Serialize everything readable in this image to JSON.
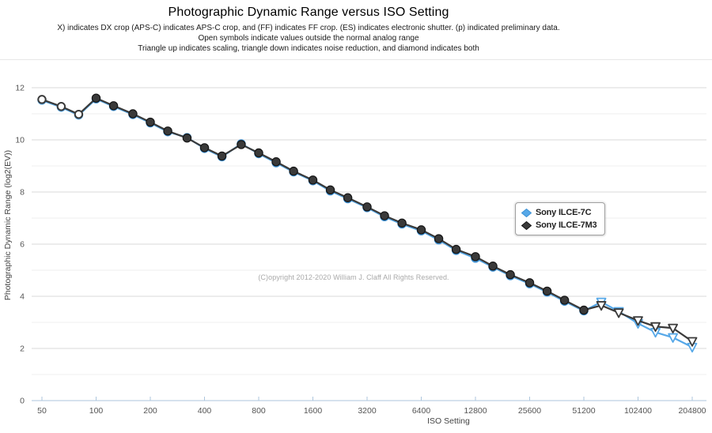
{
  "header": {
    "title": "Photographic Dynamic Range versus ISO Setting",
    "subtitle_lines": [
      "X) indicates DX crop (APS-C) indicates APS-C crop, and (FF) indicates FF crop. (ES) indicates electronic shutter. (p) indicated preliminary data.",
      "Open symbols indicate values outside the normal analog range",
      "Triangle up indicates scaling, triangle down indicates noise reduction, and diamond indicates both"
    ]
  },
  "copyright": "(C)opyright 2012-2020 William J. Claff All Rights Reserved.",
  "legend": {
    "items": [
      {
        "label": "Sony ILCE-7C",
        "color": "#56a8e8",
        "edge": "#3e92d6"
      },
      {
        "label": "Sony ILCE-7M3",
        "color": "#3a3a3a",
        "edge": "#161616"
      }
    ]
  },
  "chart_data": {
    "type": "line",
    "title": "Photographic Dynamic Range versus ISO Setting",
    "xlabel": "ISO Setting",
    "ylabel": "Photographic Dynamic Range (log2(EV))",
    "x_scale": "log2",
    "grid": true,
    "legend_position": "right-middle",
    "x_ticks": [
      50,
      100,
      200,
      400,
      800,
      1600,
      3200,
      6400,
      12800,
      25600,
      51200,
      102400,
      204800
    ],
    "y_ticks": [
      0,
      2,
      4,
      6,
      8,
      10,
      12
    ],
    "ylim": [
      0,
      12
    ],
    "xlim": [
      50,
      204800
    ],
    "iso": [
      50,
      64,
      80,
      100,
      125,
      160,
      200,
      250,
      320,
      400,
      500,
      640,
      800,
      1000,
      1250,
      1600,
      2000,
      2500,
      3200,
      4000,
      5000,
      6400,
      8000,
      10000,
      12800,
      16000,
      20000,
      25600,
      32000,
      40000,
      51200,
      64000,
      80000,
      102400,
      128000,
      160000,
      204800
    ],
    "marker_legend": {
      "open-circle": "value outside normal analog range",
      "open-triangle-down": "noise reduction detected",
      "circle": "normal measurement"
    },
    "series": [
      {
        "name": "Sony ILCE-7C",
        "color": "#56a8e8",
        "marker_edge": "#3e92d6",
        "pdr": [
          11.52,
          11.25,
          10.95,
          11.57,
          11.28,
          10.97,
          10.65,
          10.31,
          10.09,
          9.67,
          9.35,
          9.85,
          9.47,
          9.12,
          8.77,
          8.43,
          8.04,
          7.74,
          7.4,
          7.05,
          6.77,
          6.51,
          6.16,
          5.76,
          5.46,
          5.12,
          4.79,
          4.48,
          4.16,
          3.81,
          3.44,
          3.78,
          3.42,
          2.96,
          2.62,
          2.42,
          2.05
        ],
        "markers": [
          "open-circle",
          "open-circle",
          "open-circle",
          "circle",
          "circle",
          "circle",
          "circle",
          "circle",
          "circle",
          "circle",
          "circle",
          "circle",
          "circle",
          "circle",
          "circle",
          "circle",
          "circle",
          "circle",
          "circle",
          "circle",
          "circle",
          "circle",
          "circle",
          "circle",
          "circle",
          "circle",
          "circle",
          "circle",
          "circle",
          "circle",
          "circle",
          "open-triangle-down",
          "open-triangle-down",
          "open-triangle-down",
          "open-triangle-down",
          "open-triangle-down",
          "open-triangle-down"
        ]
      },
      {
        "name": "Sony ILCE-7M3",
        "color": "#3a3a3a",
        "marker_edge": "#161616",
        "pdr": [
          11.55,
          11.28,
          10.98,
          11.6,
          11.31,
          11.0,
          10.68,
          10.34,
          10.07,
          9.7,
          9.38,
          9.82,
          9.5,
          9.16,
          8.8,
          8.46,
          8.08,
          7.78,
          7.43,
          7.09,
          6.81,
          6.55,
          6.21,
          5.8,
          5.52,
          5.16,
          4.83,
          4.52,
          4.2,
          3.85,
          3.47,
          3.65,
          3.37,
          3.07,
          2.84,
          2.78,
          2.27
        ],
        "markers": [
          "open-circle",
          "open-circle",
          "open-circle",
          "circle",
          "circle",
          "circle",
          "circle",
          "circle",
          "circle",
          "circle",
          "circle",
          "circle",
          "circle",
          "circle",
          "circle",
          "circle",
          "circle",
          "circle",
          "circle",
          "circle",
          "circle",
          "circle",
          "circle",
          "circle",
          "circle",
          "circle",
          "circle",
          "circle",
          "circle",
          "circle",
          "circle",
          "open-triangle-down",
          "open-triangle-down",
          "open-triangle-down",
          "open-triangle-down",
          "open-triangle-down",
          "open-triangle-down"
        ]
      }
    ]
  }
}
